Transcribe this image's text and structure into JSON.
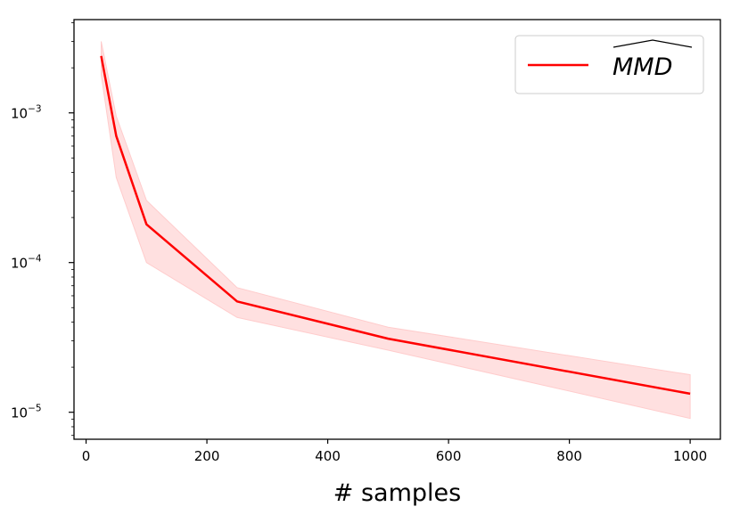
{
  "chart_data": {
    "type": "line",
    "title": "",
    "xlabel": "# samples",
    "ylabel": "",
    "yscale": "log",
    "xlim": [
      -20,
      1050
    ],
    "ylim": [
      6.6e-06,
      0.0042
    ],
    "xticks": [
      0,
      200,
      400,
      600,
      800,
      1000
    ],
    "xtick_labels": [
      "0",
      "200",
      "400",
      "600",
      "800",
      "1000"
    ],
    "yticks": [
      1e-05,
      0.0001,
      0.001
    ],
    "ytick_labels": [
      {
        "base": "10",
        "exp": "−5"
      },
      {
        "base": "10",
        "exp": "−4"
      },
      {
        "base": "10",
        "exp": "−3"
      }
    ],
    "grid": false,
    "legend": {
      "position": "top-right",
      "entries": [
        "MMD"
      ],
      "hat": true
    },
    "series": [
      {
        "name": "MMD",
        "color": "#ff0000",
        "band_color": "#ffcccc",
        "x": [
          25,
          50,
          100,
          250,
          500,
          1000
        ],
        "y": [
          0.0024,
          0.0007,
          0.00018,
          5.5e-05,
          3.1e-05,
          1.33e-05
        ],
        "lower": [
          0.0018,
          0.00037,
          0.0001,
          4.3e-05,
          2.6e-05,
          9.1e-06
        ],
        "upper": [
          0.003,
          0.00095,
          0.00026,
          6.8e-05,
          3.7e-05,
          1.78e-05
        ]
      }
    ]
  }
}
